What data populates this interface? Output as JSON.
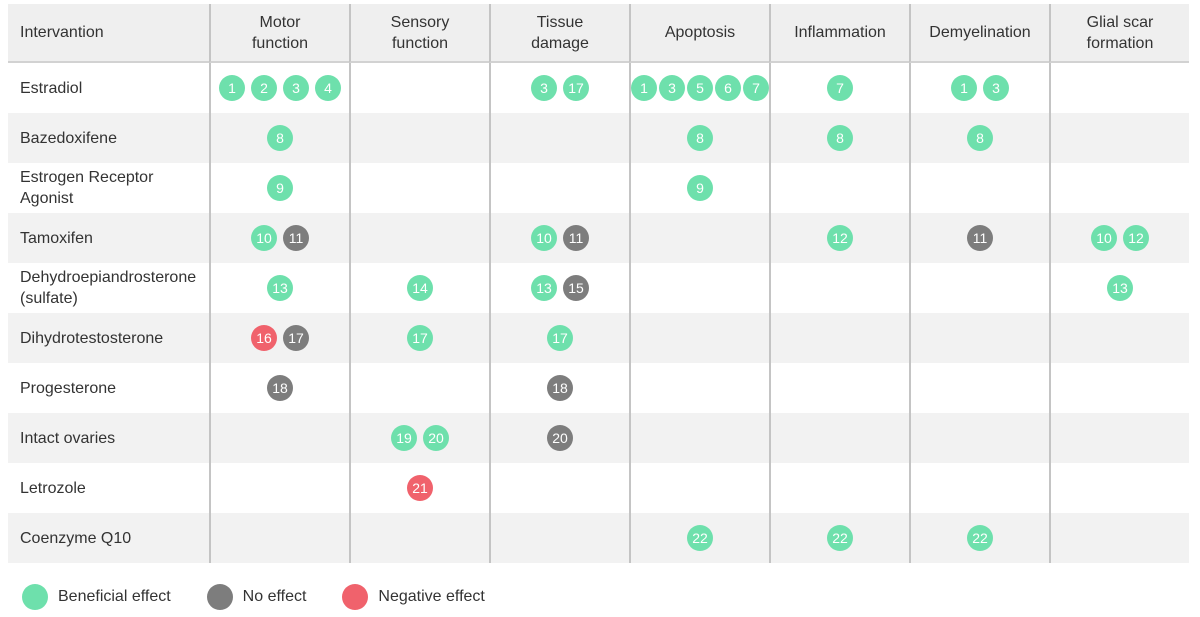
{
  "colors": {
    "beneficial": "#6ee0ac",
    "no_effect": "#7d7d7d",
    "negative": "#f0626c"
  },
  "table": {
    "columns": [
      "Intervantion",
      "Motor\nfunction",
      "Sensory\nfunction",
      "Tissue\ndamage",
      "Apoptosis",
      "Inflammation",
      "Demyelination",
      "Glial scar\nformation"
    ],
    "rows": [
      {
        "label": "Estradiol",
        "cells": [
          [
            {
              "n": "1",
              "e": "beneficial"
            },
            {
              "n": "2",
              "e": "beneficial"
            },
            {
              "n": "3",
              "e": "beneficial"
            },
            {
              "n": "4",
              "e": "beneficial"
            }
          ],
          [],
          [
            {
              "n": "3",
              "e": "beneficial"
            },
            {
              "n": "17",
              "e": "beneficial"
            }
          ],
          [
            {
              "n": "1",
              "e": "beneficial"
            },
            {
              "n": "3",
              "e": "beneficial"
            },
            {
              "n": "5",
              "e": "beneficial"
            },
            {
              "n": "6",
              "e": "beneficial"
            },
            {
              "n": "7",
              "e": "beneficial"
            }
          ],
          [
            {
              "n": "7",
              "e": "beneficial"
            }
          ],
          [
            {
              "n": "1",
              "e": "beneficial"
            },
            {
              "n": "3",
              "e": "beneficial"
            }
          ],
          []
        ]
      },
      {
        "label": "Bazedoxifene",
        "cells": [
          [
            {
              "n": "8",
              "e": "beneficial"
            }
          ],
          [],
          [],
          [
            {
              "n": "8",
              "e": "beneficial"
            }
          ],
          [
            {
              "n": "8",
              "e": "beneficial"
            }
          ],
          [
            {
              "n": "8",
              "e": "beneficial"
            }
          ],
          []
        ]
      },
      {
        "label": "Estrogen Receptor\nAgonist",
        "cells": [
          [
            {
              "n": "9",
              "e": "beneficial"
            }
          ],
          [],
          [],
          [
            {
              "n": "9",
              "e": "beneficial"
            }
          ],
          [],
          [],
          []
        ]
      },
      {
        "label": "Tamoxifen",
        "cells": [
          [
            {
              "n": "10",
              "e": "beneficial"
            },
            {
              "n": "11",
              "e": "no_effect"
            }
          ],
          [],
          [
            {
              "n": "10",
              "e": "beneficial"
            },
            {
              "n": "11",
              "e": "no_effect"
            }
          ],
          [],
          [
            {
              "n": "12",
              "e": "beneficial"
            }
          ],
          [
            {
              "n": "11",
              "e": "no_effect"
            }
          ],
          [
            {
              "n": "10",
              "e": "beneficial"
            },
            {
              "n": "12",
              "e": "beneficial"
            }
          ]
        ]
      },
      {
        "label": "Dehydroepiandrosterone\n(sulfate)",
        "cells": [
          [
            {
              "n": "13",
              "e": "beneficial"
            }
          ],
          [
            {
              "n": "14",
              "e": "beneficial"
            }
          ],
          [
            {
              "n": "13",
              "e": "beneficial"
            },
            {
              "n": "15",
              "e": "no_effect"
            }
          ],
          [],
          [],
          [],
          [
            {
              "n": "13",
              "e": "beneficial"
            }
          ]
        ]
      },
      {
        "label": "Dihydrotestosterone",
        "cells": [
          [
            {
              "n": "16",
              "e": "negative"
            },
            {
              "n": "17",
              "e": "no_effect"
            }
          ],
          [
            {
              "n": "17",
              "e": "beneficial"
            }
          ],
          [
            {
              "n": "17",
              "e": "beneficial"
            }
          ],
          [],
          [],
          [],
          []
        ]
      },
      {
        "label": "Progesterone",
        "cells": [
          [
            {
              "n": "18",
              "e": "no_effect"
            }
          ],
          [],
          [
            {
              "n": "18",
              "e": "no_effect"
            }
          ],
          [],
          [],
          [],
          []
        ]
      },
      {
        "label": "Intact ovaries",
        "cells": [
          [],
          [
            {
              "n": "19",
              "e": "beneficial"
            },
            {
              "n": "20",
              "e": "beneficial"
            }
          ],
          [
            {
              "n": "20",
              "e": "no_effect"
            }
          ],
          [],
          [],
          [],
          []
        ]
      },
      {
        "label": "Letrozole",
        "cells": [
          [],
          [
            {
              "n": "21",
              "e": "negative"
            }
          ],
          [],
          [],
          [],
          [],
          []
        ]
      },
      {
        "label": "Coenzyme Q10",
        "cells": [
          [],
          [],
          [],
          [
            {
              "n": "22",
              "e": "beneficial"
            }
          ],
          [
            {
              "n": "22",
              "e": "beneficial"
            }
          ],
          [
            {
              "n": "22",
              "e": "beneficial"
            }
          ],
          []
        ]
      }
    ]
  },
  "legend": [
    {
      "effect": "beneficial",
      "label": "Beneficial effect"
    },
    {
      "effect": "no_effect",
      "label": "No effect"
    },
    {
      "effect": "negative",
      "label": "Negative effect"
    }
  ]
}
